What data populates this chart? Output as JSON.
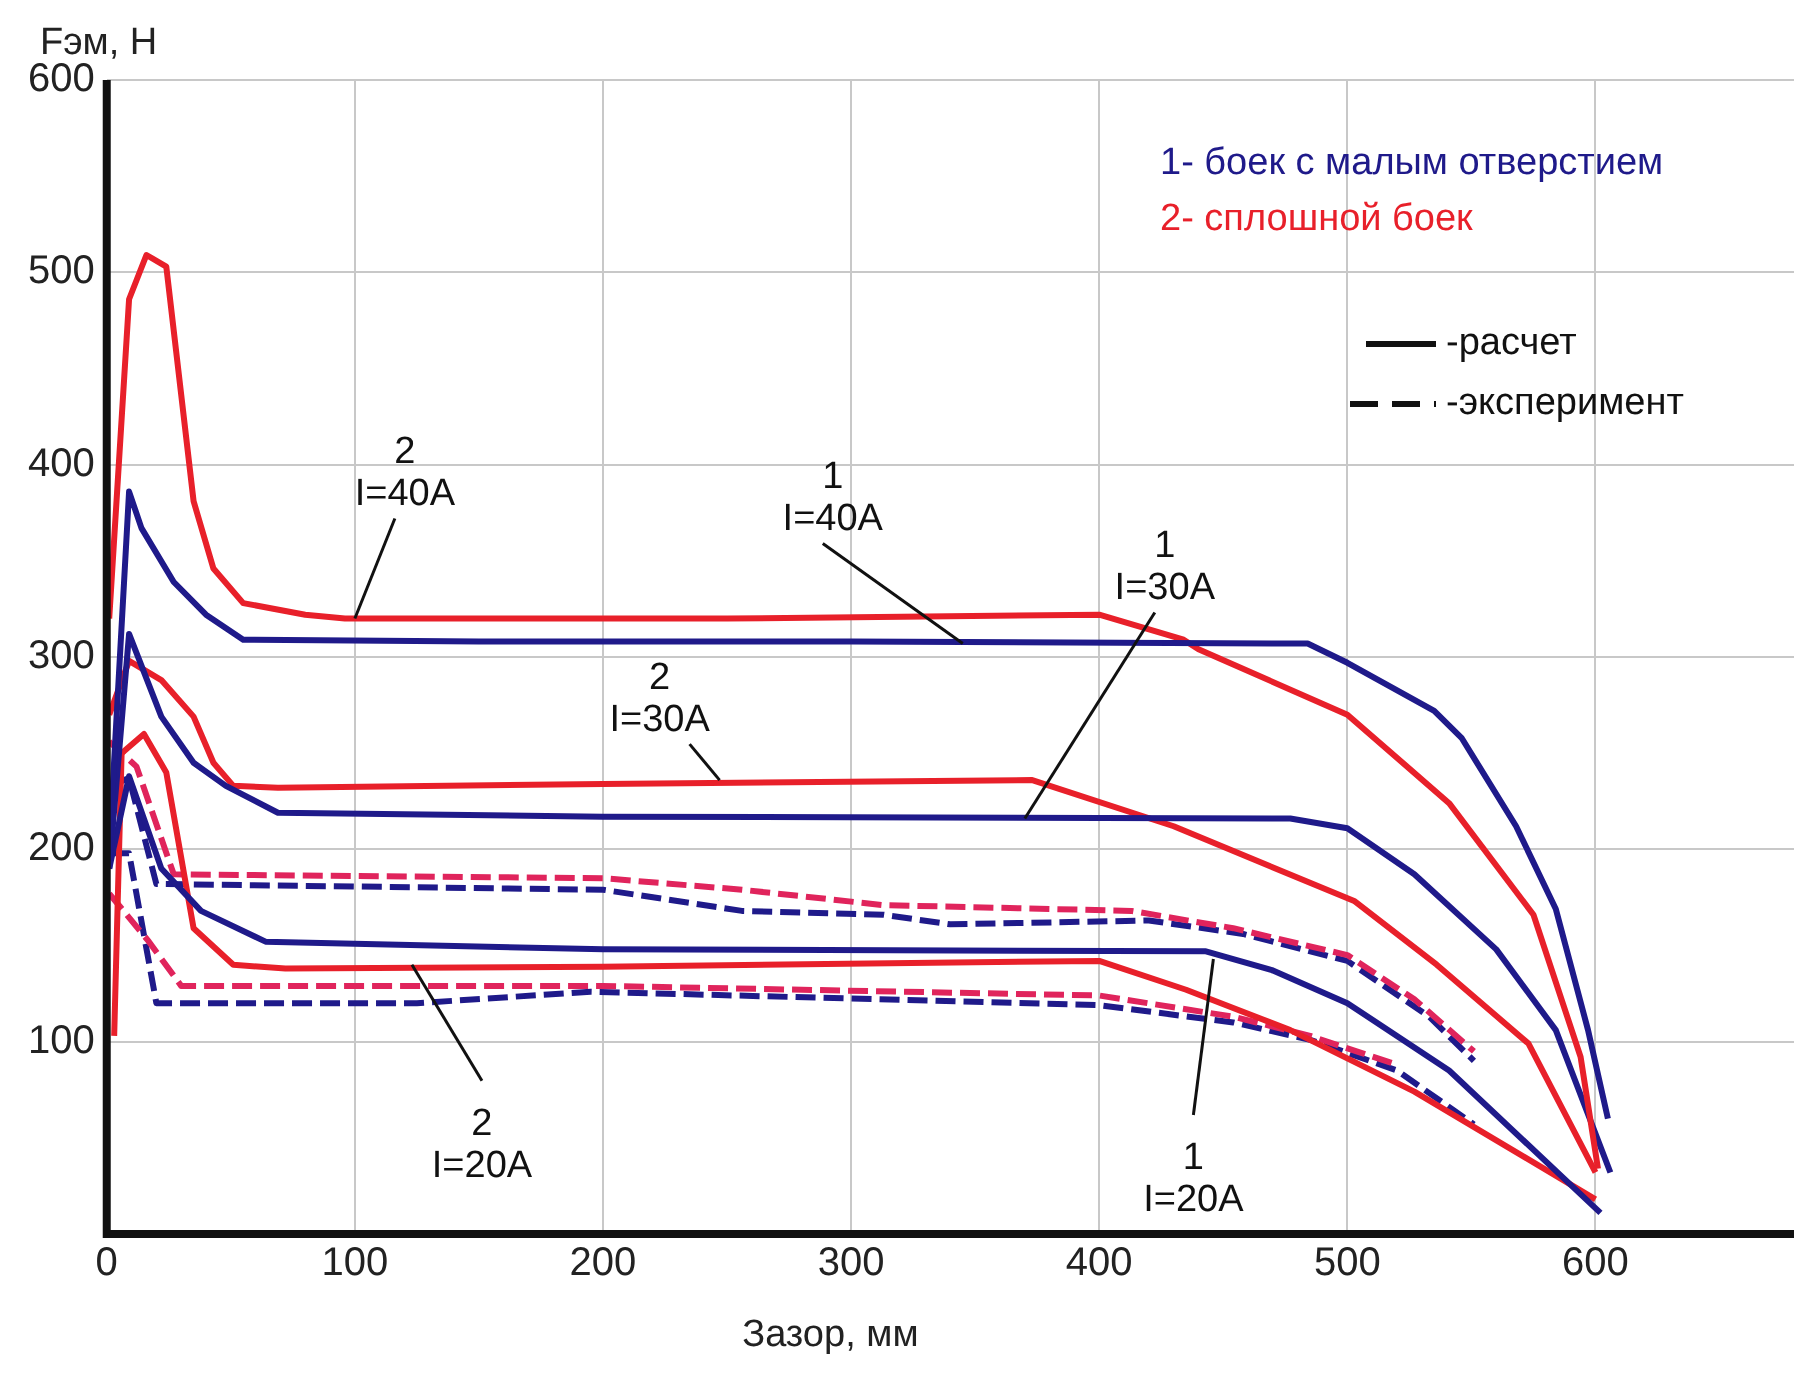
{
  "chart_data": {
    "type": "line",
    "xlabel": "Зазор, мм",
    "ylabel": "Fэм, Н",
    "xlim": [
      0,
      680
    ],
    "ylim": [
      0,
      600
    ],
    "xticks": [
      0,
      100,
      200,
      300,
      400,
      500,
      600
    ],
    "yticks": [
      100,
      200,
      300,
      400,
      500,
      600
    ],
    "grid": true,
    "marker": "none",
    "series": [
      {
        "color": "#1f1a8a",
        "line_style": "solid",
        "x": [
          1,
          9,
          14,
          27,
          40,
          55,
          150,
          300,
          484,
          500,
          535,
          546,
          568,
          584,
          597,
          605
        ],
        "values": [
          200,
          386,
          367,
          339,
          322,
          309,
          308,
          308,
          307,
          297,
          272,
          258,
          212,
          169,
          106,
          60
        ]
      },
      {
        "color": "#e8202a",
        "line_style": "solid",
        "x": [
          1,
          9,
          16,
          24,
          35,
          43,
          55,
          80,
          96,
          250,
          400,
          434,
          440,
          500,
          541,
          575,
          594,
          601
        ],
        "values": [
          320,
          486,
          509,
          503,
          381,
          346,
          328,
          322,
          320,
          320,
          322,
          309,
          304,
          270,
          224,
          166,
          92,
          34
        ]
      },
      {
        "color": "#1f1a8a",
        "line_style": "solid",
        "x": [
          1,
          9,
          22,
          35,
          48,
          69,
          200,
          477,
          500,
          527,
          560,
          584,
          606
        ],
        "values": [
          190,
          312,
          269,
          245,
          233,
          219,
          217,
          216,
          211,
          187,
          148,
          106,
          32
        ]
      },
      {
        "color": "#e8202a",
        "line_style": "solid",
        "x": [
          1,
          9,
          22,
          35,
          43,
          51,
          69,
          200,
          373,
          430,
          503,
          536,
          573,
          600
        ],
        "values": [
          270,
          298,
          288,
          269,
          245,
          233,
          232,
          234,
          236,
          212,
          173,
          140,
          99,
          32
        ]
      },
      {
        "color": "#1f1a8a",
        "line_style": "solid",
        "x": [
          1,
          9,
          22,
          38,
          64,
          200,
          443,
          470,
          500,
          541,
          602
        ],
        "values": [
          190,
          238,
          190,
          168,
          152,
          148,
          147,
          137,
          120,
          85,
          11
        ]
      },
      {
        "color": "#e8202a",
        "line_style": "solid",
        "x": [
          3,
          6,
          15,
          24,
          35,
          51,
          72,
          200,
          400,
          435,
          477,
          527,
          600
        ],
        "values": [
          103,
          250,
          260,
          240,
          159,
          140,
          138,
          139,
          142,
          127,
          106,
          74,
          18
        ]
      },
      {
        "color": "#e0245c",
        "line_style": "dashed",
        "x": [
          1,
          12,
          27,
          200,
          256,
          313,
          413,
          454,
          500,
          527,
          551
        ],
        "values": [
          256,
          243,
          187,
          185,
          179,
          171,
          168,
          159,
          145,
          122,
          95
        ]
      },
      {
        "color": "#1f1a8a",
        "line_style": "dashed",
        "x": [
          1,
          9,
          20,
          200,
          256,
          313,
          340,
          420,
          458,
          500,
          533,
          551
        ],
        "values": [
          233,
          237,
          182,
          179,
          168,
          166,
          161,
          163,
          156,
          142,
          113,
          90
        ]
      },
      {
        "color": "#e0245c",
        "line_style": "dashed",
        "x": [
          1,
          17,
          30,
          200,
          400,
          454,
          485,
          520
        ],
        "values": [
          177,
          152,
          129,
          129,
          124,
          113,
          103,
          88
        ]
      },
      {
        "color": "#1f1a8a",
        "line_style": "dashed",
        "x": [
          1,
          9,
          20,
          125,
          195,
          400,
          454,
          485,
          520,
          551
        ],
        "values": [
          198,
          198,
          120,
          120,
          126,
          119,
          110,
          101,
          85,
          57
        ]
      }
    ],
    "annotations": [
      "1- боек с малым отверстием",
      "2- сплошной боек",
      "-расчет",
      "-эксперимент",
      {
        "text": "2\nI=40A",
        "x": 100,
        "y": 320
      },
      {
        "text": "1\nI=40A",
        "x": 345,
        "y": 307
      },
      {
        "text": "2\nI=30A",
        "x": 247,
        "y": 236
      },
      {
        "text": "1\nI=30A",
        "x": 370,
        "y": 216
      },
      {
        "text": "2\nI=20A",
        "x": 123,
        "y": 140
      },
      {
        "text": "1\nI=20A",
        "x": 446,
        "y": 143
      }
    ]
  }
}
